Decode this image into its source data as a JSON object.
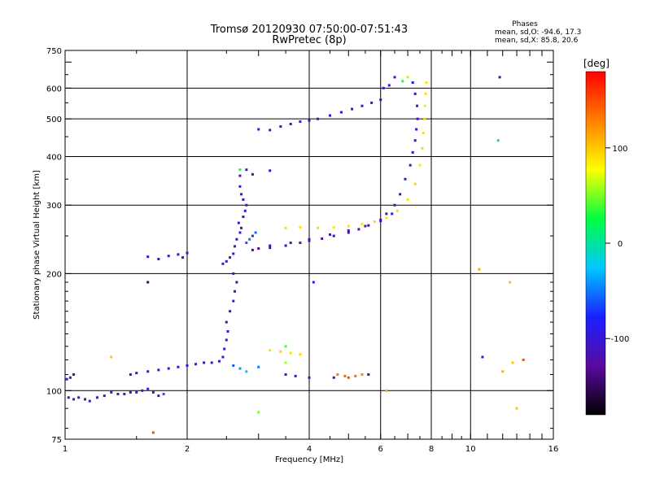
{
  "header": {
    "title_line1": "Tromsø 20120930 07:50:00-07:51:43",
    "title_line2": "RwPretec (8p)"
  },
  "stats": {
    "heading": "Phases",
    "line_o": "mean, sd,O: -94.6, 17.3",
    "line_x": "mean, sd,X:  85.8, 20.6"
  },
  "colorbar": {
    "unit_label": "[deg]",
    "ticks": [
      {
        "value": 100,
        "label": "100"
      },
      {
        "value": 0,
        "label": "0"
      },
      {
        "value": -100,
        "label": "-100"
      }
    ],
    "range": [
      -180,
      180
    ],
    "colors": [
      "#000000",
      "#5a0aa0",
      "#1a20ff",
      "#00c8ff",
      "#00ff40",
      "#ffff00",
      "#ff8000",
      "#ff0000"
    ]
  },
  "chart_data": {
    "type": "scatter",
    "title": "Tromsø 20120930 07:50:00-07:51:43",
    "subtitle": "RwPretec (8p)",
    "xlabel": "Frequency [MHz]",
    "ylabel": "Stationary phase Virtual Height [km]",
    "xscale": "log",
    "yscale": "log",
    "xlim": [
      1,
      16
    ],
    "ylim": [
      75,
      750
    ],
    "x_ticks": [
      {
        "value": 1,
        "label": "1"
      },
      {
        "value": 2,
        "label": "2"
      },
      {
        "value": 4,
        "label": "4"
      },
      {
        "value": 6,
        "label": "6"
      },
      {
        "value": 8,
        "label": "8"
      },
      {
        "value": 10,
        "label": "10"
      },
      {
        "value": 16,
        "label": "16"
      }
    ],
    "y_ticks": [
      {
        "value": 75,
        "label": "75"
      },
      {
        "value": 100,
        "label": "100"
      },
      {
        "value": 200,
        "label": "200"
      },
      {
        "value": 300,
        "label": "300"
      },
      {
        "value": 400,
        "label": "400"
      },
      {
        "value": 500,
        "label": "500"
      },
      {
        "value": 600,
        "label": "600"
      },
      {
        "value": 750,
        "label": "750"
      }
    ],
    "grid_x": [
      2,
      4,
      6,
      8,
      10
    ],
    "grid_y": [
      100,
      200,
      300,
      400,
      500,
      600
    ],
    "grid": true,
    "color_meaning": "phase in degrees",
    "series": [
      {
        "points": [
          [
            1.01,
            107,
            -95
          ],
          [
            1.03,
            108,
            -92
          ],
          [
            1.05,
            110,
            -98
          ],
          [
            1.02,
            96,
            -110
          ],
          [
            1.05,
            95,
            -105
          ],
          [
            1.08,
            96,
            -100
          ],
          [
            1.12,
            95,
            -108
          ],
          [
            1.15,
            94,
            -112
          ],
          [
            1.2,
            96,
            -106
          ],
          [
            1.25,
            97,
            -100
          ],
          [
            1.3,
            99,
            -104
          ],
          [
            1.35,
            98,
            -110
          ],
          [
            1.4,
            98,
            -95
          ],
          [
            1.45,
            99,
            -102
          ],
          [
            1.5,
            99,
            -108
          ],
          [
            1.55,
            100,
            -96
          ],
          [
            1.6,
            101,
            -90
          ],
          [
            1.65,
            99,
            -104
          ],
          [
            1.7,
            97,
            -110
          ],
          [
            1.45,
            110,
            -100
          ],
          [
            1.5,
            111,
            -105
          ],
          [
            1.6,
            112,
            -98
          ],
          [
            1.7,
            113,
            -102
          ],
          [
            1.8,
            114,
            -108
          ],
          [
            1.9,
            115,
            -96
          ],
          [
            2.0,
            116,
            -100
          ],
          [
            2.1,
            117,
            -104
          ],
          [
            2.2,
            118,
            -110
          ],
          [
            2.3,
            118,
            -98
          ],
          [
            2.4,
            119,
            -92
          ],
          [
            2.45,
            122,
            -100
          ],
          [
            2.47,
            128,
            -105
          ],
          [
            2.5,
            135,
            -98
          ],
          [
            2.52,
            142,
            -102
          ],
          [
            2.5,
            150,
            -108
          ],
          [
            2.55,
            160,
            -96
          ],
          [
            2.6,
            170,
            -100
          ],
          [
            2.62,
            180,
            -104
          ],
          [
            2.65,
            190,
            -110
          ],
          [
            2.6,
            200,
            -100
          ],
          [
            2.45,
            212,
            -105
          ],
          [
            2.5,
            215,
            -96
          ],
          [
            2.55,
            220,
            -102
          ],
          [
            2.6,
            225,
            -108
          ],
          [
            2.62,
            235,
            -98
          ],
          [
            2.65,
            245,
            -92
          ],
          [
            2.7,
            255,
            -102
          ],
          [
            2.72,
            262,
            -108
          ],
          [
            2.68,
            270,
            -100
          ],
          [
            2.75,
            280,
            -110
          ],
          [
            2.78,
            290,
            -96
          ],
          [
            2.8,
            300,
            -104
          ],
          [
            2.75,
            310,
            -100
          ],
          [
            2.72,
            320,
            -98
          ],
          [
            2.7,
            335,
            -102
          ],
          [
            2.8,
            240,
            -60
          ],
          [
            2.85,
            245,
            -50
          ],
          [
            2.9,
            250,
            -70
          ],
          [
            2.95,
            255,
            -55
          ],
          [
            2.9,
            230,
            -130
          ],
          [
            3.0,
            232,
            -140
          ],
          [
            3.2,
            233,
            -135
          ],
          [
            3.5,
            236,
            -130
          ],
          [
            3.8,
            240,
            -128
          ],
          [
            4.0,
            243,
            -125
          ],
          [
            4.3,
            246,
            -132
          ],
          [
            4.6,
            250,
            -128
          ],
          [
            5.0,
            255,
            -126
          ],
          [
            5.3,
            260,
            -130
          ],
          [
            5.6,
            266,
            -128
          ],
          [
            6.0,
            275,
            -124
          ],
          [
            6.2,
            285,
            -120
          ],
          [
            6.5,
            300,
            -118
          ],
          [
            6.7,
            320,
            -116
          ],
          [
            6.9,
            350,
            -110
          ],
          [
            7.1,
            380,
            -108
          ],
          [
            7.2,
            410,
            -106
          ],
          [
            7.3,
            440,
            -104
          ],
          [
            7.35,
            470,
            -102
          ],
          [
            7.4,
            500,
            -100
          ],
          [
            7.38,
            540,
            -98
          ],
          [
            7.3,
            580,
            -96
          ],
          [
            7.2,
            620,
            -94
          ],
          [
            3.2,
            236,
            -100
          ],
          [
            3.6,
            240,
            -102
          ],
          [
            4.0,
            245,
            -98
          ],
          [
            4.5,
            252,
            -100
          ],
          [
            5.0,
            258,
            -104
          ],
          [
            5.5,
            265,
            -100
          ],
          [
            6.0,
            273,
            -96
          ],
          [
            6.4,
            285,
            -92
          ],
          [
            3.5,
            262,
            90
          ],
          [
            3.8,
            263,
            88
          ],
          [
            4.2,
            262,
            92
          ],
          [
            4.6,
            263,
            86
          ],
          [
            5.0,
            265,
            90
          ],
          [
            5.4,
            268,
            88
          ],
          [
            5.8,
            272,
            92
          ],
          [
            6.2,
            278,
            86
          ],
          [
            6.6,
            290,
            90
          ],
          [
            7.0,
            310,
            88
          ],
          [
            7.3,
            340,
            92
          ],
          [
            7.5,
            380,
            86
          ],
          [
            7.6,
            420,
            90
          ],
          [
            7.65,
            460,
            88
          ],
          [
            7.7,
            500,
            92
          ],
          [
            7.72,
            540,
            86
          ],
          [
            7.75,
            580,
            90
          ],
          [
            7.78,
            620,
            88
          ],
          [
            1.8,
            222,
            -95
          ],
          [
            1.9,
            224,
            -100
          ],
          [
            1.95,
            220,
            -105
          ],
          [
            2.0,
            226,
            -98
          ],
          [
            1.6,
            221,
            -100
          ],
          [
            1.7,
            218,
            -104
          ],
          [
            3.0,
            470,
            -120
          ],
          [
            3.2,
            468,
            -125
          ],
          [
            3.4,
            478,
            -110
          ],
          [
            3.6,
            485,
            -105
          ],
          [
            3.8,
            492,
            -102
          ],
          [
            4.0,
            495,
            -100
          ],
          [
            4.2,
            500,
            -98
          ],
          [
            4.5,
            510,
            -102
          ],
          [
            4.8,
            520,
            -100
          ],
          [
            5.1,
            530,
            -96
          ],
          [
            5.4,
            540,
            -98
          ],
          [
            5.7,
            550,
            -100
          ],
          [
            6.0,
            560,
            -102
          ],
          [
            6.1,
            600,
            -90
          ],
          [
            6.3,
            610,
            -88
          ],
          [
            6.5,
            640,
            -95
          ],
          [
            6.8,
            625,
            30
          ],
          [
            7.0,
            640,
            60
          ],
          [
            3.2,
            127,
            90
          ],
          [
            3.4,
            126,
            95
          ],
          [
            3.6,
            125,
            88
          ],
          [
            3.8,
            124,
            92
          ],
          [
            3.5,
            118,
            60
          ],
          [
            2.6,
            116,
            -60
          ],
          [
            2.7,
            114,
            -40
          ],
          [
            2.8,
            112,
            -30
          ],
          [
            3.0,
            115,
            -50
          ],
          [
            3.5,
            110,
            -110
          ],
          [
            3.7,
            109,
            -105
          ],
          [
            4.0,
            108,
            -100
          ],
          [
            4.7,
            110,
            130
          ],
          [
            4.9,
            109,
            140
          ],
          [
            5.0,
            108,
            150
          ],
          [
            5.2,
            109,
            135
          ],
          [
            5.4,
            110,
            125
          ],
          [
            4.6,
            108,
            -100
          ],
          [
            5.6,
            110,
            -110
          ],
          [
            10.5,
            205,
            110
          ],
          [
            10.7,
            122,
            -100
          ],
          [
            11.8,
            640,
            -110
          ],
          [
            11.7,
            440,
            -10
          ],
          [
            12.5,
            190,
            100
          ],
          [
            12.7,
            118,
            100
          ],
          [
            13.5,
            120,
            150
          ],
          [
            13.0,
            90,
            100
          ],
          [
            12.0,
            112,
            110
          ],
          [
            1.6,
            190,
            -150
          ],
          [
            1.65,
            78,
            150
          ],
          [
            1.3,
            122,
            100
          ],
          [
            2.7,
            357,
            -110
          ],
          [
            2.8,
            370,
            -90
          ],
          [
            2.9,
            360,
            -120
          ],
          [
            3.2,
            368,
            -100
          ],
          [
            2.7,
            370,
            30
          ],
          [
            3.0,
            88,
            50
          ],
          [
            3.5,
            130,
            40
          ],
          [
            4.1,
            190,
            -100
          ],
          [
            6.2,
            100,
            110
          ],
          [
            1.75,
            98,
            -60
          ]
        ]
      }
    ]
  }
}
